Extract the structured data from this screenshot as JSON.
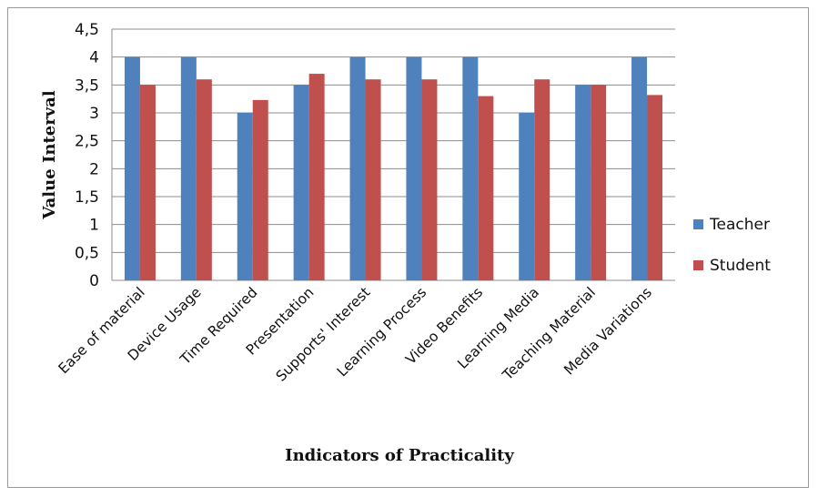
{
  "chart_data": {
    "type": "bar",
    "title": "",
    "xlabel": "Indicators of Practicality",
    "ylabel": "Value Interval",
    "ylim": [
      0,
      4.5
    ],
    "yticks": [
      "0",
      "0,5",
      "1",
      "1,5",
      "2",
      "2,5",
      "3",
      "3,5",
      "4",
      "4,5"
    ],
    "ytick_values": [
      0,
      0.5,
      1,
      1.5,
      2,
      2.5,
      3,
      3.5,
      4,
      4.5
    ],
    "grid": true,
    "legend_position": "right",
    "categories": [
      "Ease of material",
      "Device Usage",
      "Time Required",
      "Presentation",
      "Supports' Interest",
      "Learning Process",
      "Video Benefits",
      "Learning Media",
      "Teaching Material",
      "Media Variations"
    ],
    "series": [
      {
        "name": "Teacher",
        "color": "#4f81bd",
        "values": [
          4,
          4,
          3,
          3.5,
          4,
          4,
          4,
          3,
          3.5,
          4
        ]
      },
      {
        "name": "Student",
        "color": "#c0504d",
        "values": [
          3.5,
          3.6,
          3.23,
          3.7,
          3.6,
          3.6,
          3.3,
          3.6,
          3.5,
          3.32
        ]
      }
    ]
  }
}
